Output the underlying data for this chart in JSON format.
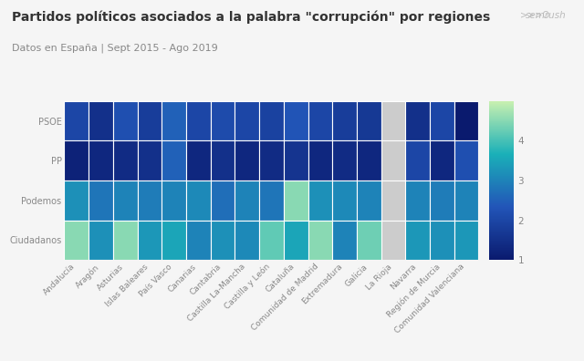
{
  "title": "Partidos políticos asociados a la palabra \"corrupción\" por regiones",
  "subtitle": "Datos en España | Sept 2015 - Ago 2019",
  "parties": [
    "PSOE",
    "PP",
    "Podemos",
    "Ciudadanos"
  ],
  "regions": [
    "Andalucía",
    "Aragón",
    "Asturias",
    "Islas Baleares",
    "País Vasco",
    "Canarias",
    "Cantabria",
    "Castilla La-Mancha",
    "Castilla y León",
    "Cataluña",
    "Comunidad de Madrid",
    "Extremadura",
    "Galicia",
    "La Rioja",
    "Navarra",
    "Región de Murcia",
    "Comunidad Valenciana"
  ],
  "data": [
    [
      2.0,
      1.5,
      2.2,
      1.8,
      2.5,
      2.0,
      2.1,
      2.0,
      1.9,
      2.3,
      2.0,
      1.8,
      1.7,
      null,
      1.5,
      2.0,
      1.0
    ],
    [
      1.2,
      1.3,
      1.4,
      1.5,
      2.5,
      1.3,
      1.5,
      1.3,
      1.4,
      1.6,
      1.3,
      1.4,
      1.3,
      null,
      2.0,
      1.3,
      2.2
    ],
    [
      3.2,
      2.8,
      3.0,
      2.9,
      3.0,
      3.1,
      2.7,
      3.0,
      2.8,
      4.5,
      3.2,
      3.1,
      3.0,
      null,
      3.0,
      2.9,
      3.0
    ],
    [
      4.5,
      3.2,
      4.5,
      3.3,
      3.5,
      3.0,
      3.2,
      3.1,
      4.2,
      3.5,
      4.5,
      3.0,
      4.3,
      null,
      3.3,
      3.2,
      3.3
    ]
  ],
  "colorbar_ticks": [
    1,
    2,
    3,
    4
  ],
  "vmin": 1,
  "vmax": 5,
  "background_color": "#f5f5f5",
  "grid_color": "#ffffff",
  "null_color": "#cccccc",
  "title_fontsize": 10,
  "subtitle_fontsize": 8,
  "tick_fontsize": 7,
  "label_color": "#888888",
  "title_color": "#333333"
}
